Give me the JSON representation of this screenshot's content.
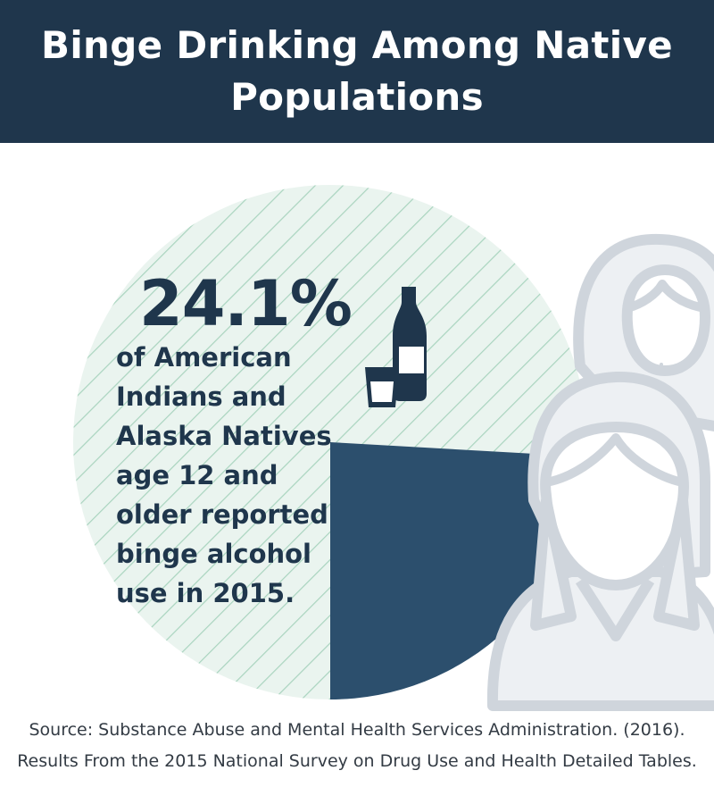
{
  "header": {
    "title": "Binge Drinking Among Native Populations"
  },
  "main": {
    "statistic": "24.1%",
    "description": "of American Indians and Alaska Natives age 12 and older reported binge alcohol use in 2015."
  },
  "chart_data": {
    "type": "pie",
    "values": [
      24.1,
      75.9
    ]
  },
  "icons": [
    "bottle-glass-icon",
    "people-icon"
  ],
  "colors": {
    "header_bg": "#1f364c",
    "highlight_slice": "#2c4f6d",
    "pattern_stripe": "#a9d4bf",
    "pattern_bg": "#eaf4ef",
    "people_fill": "#edf0f3",
    "people_stroke": "#cfd5dc"
  },
  "footer": {
    "source": "Source: Substance Abuse and Mental Health Services Administration. (2016). Results From the 2015 National Survey on Drug Use and Health Detailed Tables."
  }
}
